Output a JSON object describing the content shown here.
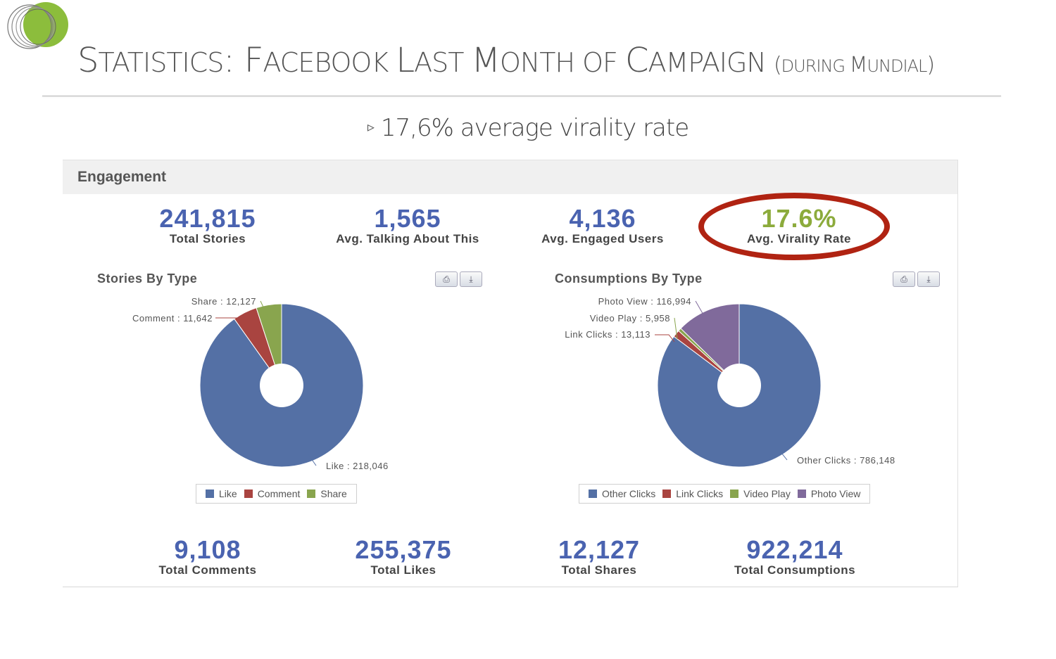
{
  "slide": {
    "title": {
      "parts": [
        {
          "text": "S",
          "cls": "big"
        },
        {
          "text": "TATISTICS",
          "cls": "sc"
        },
        {
          "text": ": ",
          "cls": "big"
        },
        {
          "text": "F",
          "cls": "big"
        },
        {
          "text": "ACEBOOK ",
          "cls": "sc"
        },
        {
          "text": "L",
          "cls": "big"
        },
        {
          "text": "AST ",
          "cls": "sc"
        },
        {
          "text": "M",
          "cls": "big"
        },
        {
          "text": "ONTH OF ",
          "cls": "sc"
        },
        {
          "text": "C",
          "cls": "big"
        },
        {
          "text": "AMPAIGN ",
          "cls": "sc"
        },
        {
          "text": "(",
          "cls": "sub-big"
        },
        {
          "text": "DURING ",
          "cls": "sub-sc"
        },
        {
          "text": "M",
          "cls": "sub-big"
        },
        {
          "text": "UNDIAL",
          "cls": "sub-sc"
        },
        {
          "text": ")",
          "cls": "sub-big"
        }
      ]
    },
    "bullet": "17,6% average virality rate",
    "bullet_marker": "▹"
  },
  "colors": {
    "blue": "#5470a5",
    "red": "#a94440",
    "green": "#89a54e",
    "purple": "#806a9b",
    "number": "#4a63b0",
    "virality": "#8cab3c",
    "highlight_ring": "#b02312"
  },
  "engagement": {
    "header": "Engagement",
    "top_stats": [
      {
        "value": "241,815",
        "label": "Total Stories"
      },
      {
        "value": "1,565",
        "label": "Avg. Talking About This"
      },
      {
        "value": "4,136",
        "label": "Avg. Engaged Users"
      },
      {
        "value": "17.6%",
        "label": "Avg. Virality Rate"
      }
    ],
    "bottom_stats": [
      {
        "value": "9,108",
        "label": "Total Comments"
      },
      {
        "value": "255,375",
        "label": "Total Likes"
      },
      {
        "value": "12,127",
        "label": "Total Shares"
      },
      {
        "value": "922,214",
        "label": "Total Consumptions"
      }
    ],
    "toolbar_icons": [
      "print-icon",
      "download-icon"
    ]
  },
  "chart_data": [
    {
      "type": "pie",
      "title": "Stories By Type",
      "donut": true,
      "legend": "bottom",
      "slices": [
        {
          "name": "Like",
          "value": 218046,
          "label": "Like : 218,046",
          "color": "#5470a5"
        },
        {
          "name": "Comment",
          "value": 11642,
          "label": "Comment : 11,642",
          "color": "#a94440"
        },
        {
          "name": "Share",
          "value": 12127,
          "label": "Share : 12,127",
          "color": "#89a54e"
        }
      ]
    },
    {
      "type": "pie",
      "title": "Consumptions By Type",
      "donut": true,
      "legend": "bottom",
      "slices": [
        {
          "name": "Other Clicks",
          "value": 786148,
          "label": "Other Clicks : 786,148",
          "color": "#5470a5"
        },
        {
          "name": "Link Clicks",
          "value": 13113,
          "label": "Link Clicks : 13,113",
          "color": "#a94440"
        },
        {
          "name": "Video Play",
          "value": 5958,
          "label": "Video Play : 5,958",
          "color": "#89a54e"
        },
        {
          "name": "Photo View",
          "value": 116994,
          "label": "Photo View : 116,994",
          "color": "#806a9b"
        }
      ]
    }
  ]
}
